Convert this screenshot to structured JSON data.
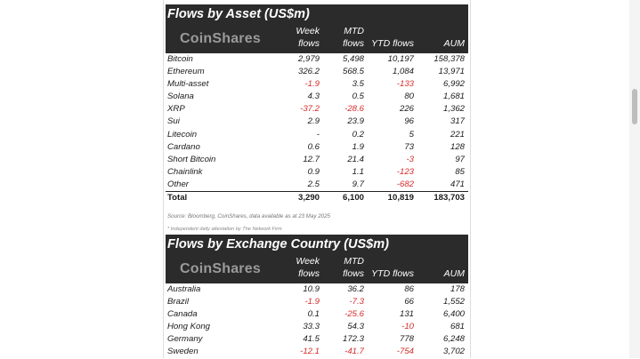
{
  "asset_table": {
    "title": "Flows by Asset (US$m)",
    "logo": "CoinShares",
    "headers": {
      "week_top": "Week",
      "week_bottom": "flows",
      "mtd_top": "MTD",
      "mtd_bottom": "flows",
      "ytd": "YTD flows",
      "aum": "AUM"
    },
    "rows": [
      {
        "name": "Bitcoin",
        "week": "2,979",
        "mtd": "5,498",
        "ytd": "10,197",
        "aum": "158,378"
      },
      {
        "name": "Ethereum",
        "week": "326.2",
        "mtd": "568.5",
        "ytd": "1,084",
        "aum": "13,971"
      },
      {
        "name": "Multi-asset",
        "week": "-1.9",
        "mtd": "3.5",
        "ytd": "-133",
        "aum": "6,992"
      },
      {
        "name": "Solana",
        "week": "4.3",
        "mtd": "0.5",
        "ytd": "80",
        "aum": "1,681"
      },
      {
        "name": "XRP",
        "week": "-37.2",
        "mtd": "-28.6",
        "ytd": "226",
        "aum": "1,362"
      },
      {
        "name": "Sui",
        "week": "2.9",
        "mtd": "23.9",
        "ytd": "96",
        "aum": "317"
      },
      {
        "name": "Litecoin",
        "week": "-",
        "mtd": "0.2",
        "ytd": "5",
        "aum": "221"
      },
      {
        "name": "Cardano",
        "week": "0.6",
        "mtd": "1.9",
        "ytd": "73",
        "aum": "128"
      },
      {
        "name": "Short Bitcoin",
        "week": "12.7",
        "mtd": "21.4",
        "ytd": "-3",
        "aum": "97"
      },
      {
        "name": "Chainlink",
        "week": "0.9",
        "mtd": "1.1",
        "ytd": "-123",
        "aum": "85"
      },
      {
        "name": "Other",
        "week": "2.5",
        "mtd": "9.7",
        "ytd": "-682",
        "aum": "471"
      }
    ],
    "total": {
      "name": "Total",
      "week": "3,290",
      "mtd": "6,100",
      "ytd": "10,819",
      "aum": "183,703"
    },
    "source": "Source: Bloomberg, CoinShares, data available as at 23 May 2025",
    "note": "* Independent daily attestation by The Network Firm"
  },
  "country_table": {
    "title": "Flows by Exchange Country (US$m)",
    "logo": "CoinShares",
    "headers": {
      "week_top": "Week",
      "week_bottom": "flows",
      "mtd_top": "MTD",
      "mtd_bottom": "flows",
      "ytd": "YTD flows",
      "aum": "AUM"
    },
    "rows": [
      {
        "name": "Australia",
        "week": "10.9",
        "mtd": "36.2",
        "ytd": "86",
        "aum": "178"
      },
      {
        "name": "Brazil",
        "week": "-1.9",
        "mtd": "-7.3",
        "ytd": "66",
        "aum": "1,552"
      },
      {
        "name": "Canada",
        "week": "0.1",
        "mtd": "-25.6",
        "ytd": "131",
        "aum": "6,400"
      },
      {
        "name": "Hong Kong",
        "week": "33.3",
        "mtd": "54.3",
        "ytd": "-10",
        "aum": "681"
      },
      {
        "name": "Germany",
        "week": "41.5",
        "mtd": "172.3",
        "ytd": "778",
        "aum": "6,248"
      },
      {
        "name": "Sweden",
        "week": "-12.1",
        "mtd": "-41.7",
        "ytd": "-754",
        "aum": "3,702"
      }
    ]
  },
  "colors": {
    "header_bg": "#2b2b2b",
    "negative": "#d62b2b",
    "logo_grey": "#9a9a9a"
  }
}
